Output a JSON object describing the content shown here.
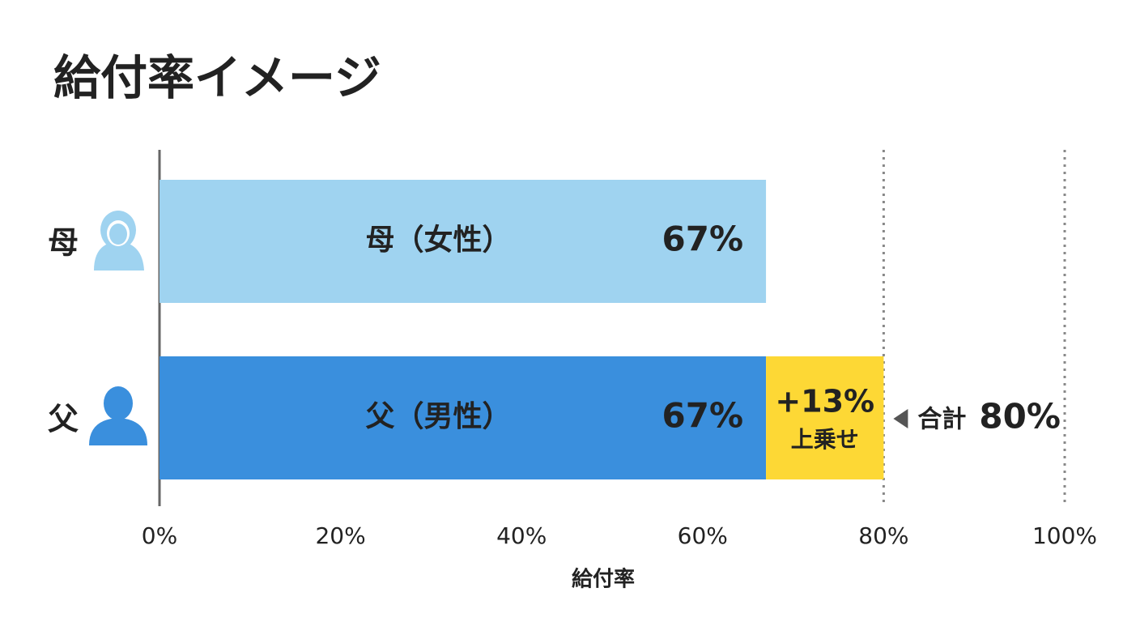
{
  "chart_data": {
    "type": "bar",
    "orientation": "horizontal",
    "stacked": true,
    "title": "給付率イメージ",
    "categories": [
      "母",
      "父"
    ],
    "series": [
      {
        "colors": [
          "#9fd3f0",
          "#3a8fdd"
        ],
        "label_colors": [
          "#333333",
          "#ffffff"
        ],
        "values": [
          67,
          67
        ],
        "value_labels": [
          "67%",
          "67%"
        ],
        "segment_labels": [
          "母（女性）",
          "父（男性）"
        ]
      },
      {
        "color": "#fdd835",
        "label_colors": [
          null,
          "#222222"
        ],
        "values": [
          null,
          13
        ],
        "value_labels": [
          null,
          "+13%"
        ],
        "segment_labels": [
          null,
          "上乗せ"
        ]
      }
    ],
    "annotation": {
      "text": "合計",
      "value": 80,
      "label": "80%"
    },
    "reference_lines": [
      80,
      100
    ],
    "xlim": [
      0,
      100
    ],
    "xticks": [
      {
        "value": 0,
        "label": "0%"
      },
      {
        "value": 20,
        "label": "20%"
      },
      {
        "value": 40,
        "label": "40%"
      },
      {
        "value": 60,
        "label": "60%"
      },
      {
        "value": 80,
        "label": "80%"
      },
      {
        "value": 100,
        "label": "100%"
      }
    ],
    "xlabel": "給付率"
  }
}
